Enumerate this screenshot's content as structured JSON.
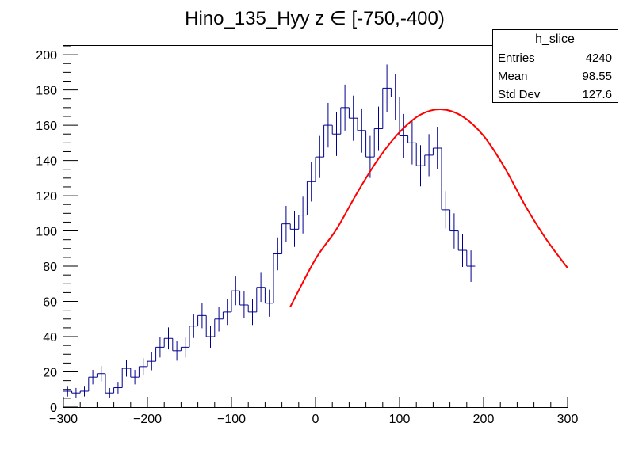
{
  "chart_data": {
    "type": "histogram",
    "title": "Hino_135_Hyy z  ∈ [-750,-400)",
    "xlabel": "",
    "ylabel": "",
    "xlim": [
      -300,
      300
    ],
    "ylim": [
      0,
      205
    ],
    "x_ticks": [
      "−300",
      "−200",
      "−100",
      "0",
      "100",
      "200",
      "300"
    ],
    "y_ticks": [
      "0",
      "20",
      "40",
      "60",
      "80",
      "100",
      "120",
      "140",
      "160",
      "180",
      "200"
    ],
    "bin_width": 10,
    "bin_edges_start": -300,
    "bin_counts": [
      9,
      8,
      9,
      17,
      19,
      8,
      11,
      22,
      17,
      23,
      26,
      34,
      39,
      32,
      34,
      46,
      52,
      40,
      50,
      54,
      66,
      58,
      54,
      68,
      59,
      87,
      104,
      101,
      109,
      128,
      142,
      160,
      155,
      170,
      164,
      157,
      142,
      158,
      181,
      176,
      154,
      150,
      137,
      143,
      147,
      112,
      100,
      89,
      80
    ],
    "histogram_color": "#00008b",
    "fit": {
      "color": "#ff0000",
      "x_range": [
        -30,
        300
      ],
      "points": [
        [
          -30,
          57
        ],
        [
          0,
          84
        ],
        [
          25,
          101
        ],
        [
          50,
          122
        ],
        [
          75,
          141
        ],
        [
          100,
          156
        ],
        [
          125,
          166
        ],
        [
          150,
          169
        ],
        [
          175,
          165
        ],
        [
          200,
          154
        ],
        [
          225,
          136
        ],
        [
          250,
          114
        ],
        [
          275,
          95
        ],
        [
          300,
          79
        ]
      ]
    },
    "legend": {
      "position": "top-right",
      "title": "h_slice",
      "rows": [
        {
          "label": "Entries",
          "value": "4240"
        },
        {
          "label": "Mean",
          "value": "98.55"
        },
        {
          "label": "Std Dev",
          "value": "127.6"
        }
      ]
    }
  }
}
